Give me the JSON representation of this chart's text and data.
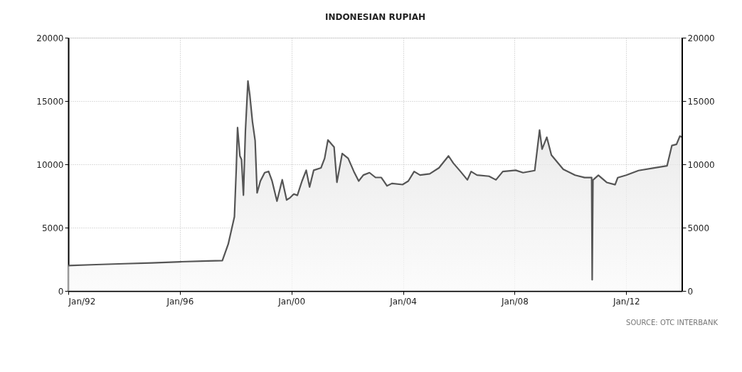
{
  "chart_data": {
    "type": "area",
    "title": "INDONESIAN RUPIAH",
    "x": [
      "1992-01-01",
      "1993-01-01",
      "1994-01-01",
      "1995-01-01",
      "1996-01-01",
      "1997-01-01",
      "1997-07-10",
      "1997-09-25",
      "1997-12-15",
      "1998-01-08",
      "1998-01-25",
      "1998-02-25",
      "1998-03-18",
      "1998-04-12",
      "1998-05-08",
      "1998-06-10",
      "1998-07-05",
      "1998-08-08",
      "1998-09-12",
      "1998-10-08",
      "1998-11-20",
      "1999-01-15",
      "1999-03-07",
      "1999-04-22",
      "1999-06-25",
      "1999-09-02",
      "1999-10-30",
      "1999-12-15",
      "2000-02-01",
      "2000-03-18",
      "2000-05-18",
      "2000-07-12",
      "2000-08-25",
      "2000-10-18",
      "2001-01-22",
      "2001-03-10",
      "2001-04-22",
      "2001-07-12",
      "2001-08-18",
      "2001-10-26",
      "2002-01-12",
      "2002-03-28",
      "2002-05-30",
      "2002-07-30",
      "2002-10-18",
      "2003-01-05",
      "2003-03-22",
      "2003-06-05",
      "2003-08-08",
      "2003-12-25",
      "2004-03-10",
      "2004-05-25",
      "2004-08-10",
      "2004-12-15",
      "2005-04-15",
      "2005-08-18",
      "2005-10-20",
      "2006-01-22",
      "2006-04-22",
      "2006-06-10",
      "2006-08-25",
      "2007-01-30",
      "2007-05-01",
      "2007-07-30",
      "2008-01-15",
      "2008-04-20",
      "2008-09-20",
      "2008-11-22",
      "2008-12-25",
      "2009-02-25",
      "2009-04-26",
      "2009-09-28",
      "2010-03-02",
      "2010-07-05",
      "2010-10-05",
      "2010-10-12",
      "2010-10-22",
      "2011-01-01",
      "2011-04-20",
      "2011-08-08",
      "2011-09-12",
      "2012-01-01",
      "2012-06-10",
      "2012-12-15",
      "2013-06-18",
      "2013-08-20",
      "2013-10-20",
      "2013-12-03",
      "2014-01-03"
    ],
    "series": [
      {
        "color": "#555555",
        "values": [
          2000,
          2080,
          2150,
          2210,
          2300,
          2370,
          2390,
          3700,
          5860,
          9620,
          12900,
          10660,
          10380,
          7560,
          12630,
          16580,
          15450,
          13380,
          11880,
          7740,
          8680,
          9340,
          9440,
          8680,
          7090,
          8780,
          7180,
          7370,
          7650,
          7550,
          8680,
          9530,
          8210,
          9530,
          9720,
          10470,
          11920,
          11360,
          8580,
          10850,
          10470,
          9430,
          8680,
          9150,
          9340,
          8960,
          8960,
          8300,
          8490,
          8400,
          8680,
          9430,
          9150,
          9250,
          9720,
          10660,
          10090,
          9430,
          8770,
          9430,
          9150,
          9060,
          8770,
          9430,
          9530,
          9340,
          9510,
          12700,
          11200,
          12140,
          10730,
          9610,
          9140,
          8950,
          8950,
          880,
          8760,
          9140,
          8570,
          8390,
          8950,
          9140,
          9510,
          9700,
          9880,
          11480,
          11580,
          12230,
          12140
        ]
      }
    ],
    "xlim": [
      "1992-01-01",
      "2014-01-03"
    ],
    "xticks": [
      {
        "value": "1992-01-01",
        "label": "Jan/92"
      },
      {
        "value": "1996-01-01",
        "label": "Jan/96"
      },
      {
        "value": "2000-01-01",
        "label": "Jan/00"
      },
      {
        "value": "2004-01-01",
        "label": "Jan/04"
      },
      {
        "value": "2008-01-01",
        "label": "Jan/08"
      },
      {
        "value": "2012-01-01",
        "label": "Jan/12"
      }
    ],
    "ylim": [
      0,
      20000
    ],
    "yticks": [
      0,
      5000,
      10000,
      15000,
      20000
    ],
    "y2lim": [
      0,
      20000
    ],
    "y2ticks": [
      0,
      5000,
      10000,
      15000,
      20000
    ],
    "grid": true,
    "annotations": [
      "SOURCE: OTC INTERBANK"
    ]
  }
}
